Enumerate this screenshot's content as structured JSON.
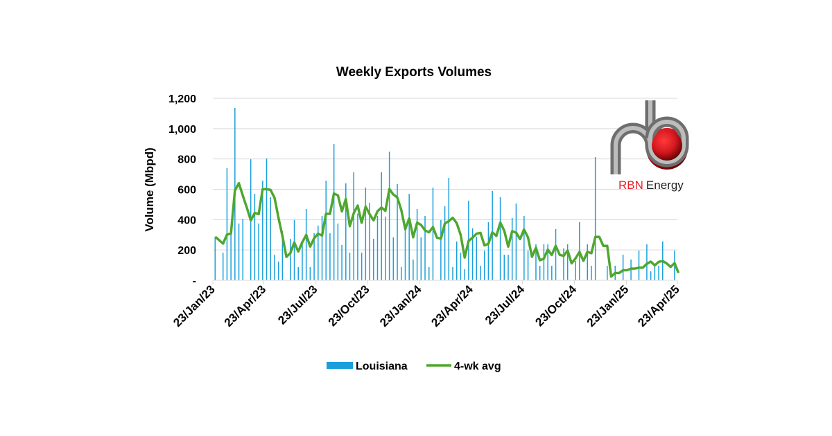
{
  "logo": {
    "text_red": "RBN",
    "text_dark": "Energy",
    "colors": {
      "red": "#e8202a",
      "pipe": "#7a7a7a"
    }
  },
  "chart_data": {
    "type": "bar",
    "title": "Weekly Exports Volumes",
    "xlabel": "",
    "ylabel": "Volume (Mbpd)",
    "ylim": [
      0,
      1200
    ],
    "yticks": [
      0,
      200,
      400,
      600,
      800,
      1000,
      1200
    ],
    "ytick_labels": [
      "-",
      "200",
      "400",
      "600",
      "800",
      "1,000",
      "1,200"
    ],
    "xlim": [
      "2023-01-23",
      "2025-04-23"
    ],
    "xticks": [
      "2023-01-23",
      "2023-04-23",
      "2023-07-23",
      "2023-10-23",
      "2024-01-23",
      "2024-04-23",
      "2024-07-23",
      "2024-10-23",
      "2025-01-23",
      "2025-04-23"
    ],
    "xtick_labels": [
      "23/Jan/23",
      "23/Apr/23",
      "23/Jul/23",
      "23/Oct/23",
      "23/Jan/24",
      "23/Apr/24",
      "23/Jul/24",
      "23/Oct/24",
      "23/Jan/25",
      "23/Apr/25"
    ],
    "grid": true,
    "legend_position": "bottom",
    "x": [
      "2023-01-27",
      "2023-02-03",
      "2023-02-10",
      "2023-02-17",
      "2023-02-24",
      "2023-03-03",
      "2023-03-10",
      "2023-03-17",
      "2023-03-24",
      "2023-03-31",
      "2023-04-07",
      "2023-04-14",
      "2023-04-21",
      "2023-04-28",
      "2023-05-05",
      "2023-05-12",
      "2023-05-19",
      "2023-05-26",
      "2023-06-02",
      "2023-06-09",
      "2023-06-16",
      "2023-06-23",
      "2023-06-30",
      "2023-07-07",
      "2023-07-14",
      "2023-07-21",
      "2023-07-28",
      "2023-08-04",
      "2023-08-11",
      "2023-08-18",
      "2023-08-25",
      "2023-09-01",
      "2023-09-08",
      "2023-09-15",
      "2023-09-22",
      "2023-09-29",
      "2023-10-06",
      "2023-10-13",
      "2023-10-20",
      "2023-10-27",
      "2023-11-03",
      "2023-11-10",
      "2023-11-17",
      "2023-11-24",
      "2023-12-01",
      "2023-12-08",
      "2023-12-15",
      "2023-12-22",
      "2023-12-29",
      "2024-01-05",
      "2024-01-12",
      "2024-01-19",
      "2024-01-26",
      "2024-02-02",
      "2024-02-09",
      "2024-02-16",
      "2024-02-23",
      "2024-03-01",
      "2024-03-08",
      "2024-03-15",
      "2024-03-22",
      "2024-03-29",
      "2024-04-05",
      "2024-04-12",
      "2024-04-19",
      "2024-04-26",
      "2024-05-03",
      "2024-05-10",
      "2024-05-17",
      "2024-05-24",
      "2024-05-31",
      "2024-06-07",
      "2024-06-14",
      "2024-06-21",
      "2024-06-28",
      "2024-07-05",
      "2024-07-12",
      "2024-07-19",
      "2024-07-26",
      "2024-08-02",
      "2024-08-09",
      "2024-08-16",
      "2024-08-23",
      "2024-08-30",
      "2024-09-06",
      "2024-09-13",
      "2024-09-20",
      "2024-09-27",
      "2024-10-04",
      "2024-10-11",
      "2024-10-18",
      "2024-10-25",
      "2024-11-01",
      "2024-11-08",
      "2024-11-15",
      "2024-11-22",
      "2024-11-29",
      "2024-12-06",
      "2024-12-13",
      "2024-12-20",
      "2024-12-27",
      "2025-01-03",
      "2025-01-10",
      "2025-01-17",
      "2025-01-24",
      "2025-01-31",
      "2025-02-07",
      "2025-02-14",
      "2025-02-21",
      "2025-02-28",
      "2025-03-07",
      "2025-03-14",
      "2025-03-21",
      "2025-03-28",
      "2025-04-04",
      "2025-04-11",
      "2025-04-18",
      "2025-04-25"
    ],
    "series": [
      {
        "name": "Louisiana",
        "type": "bar",
        "color": "#1a9fdb",
        "values": [
          284,
          0,
          182,
          739,
          310,
          1136,
          374,
          406,
          0,
          798,
          570,
          374,
          657,
          803,
          548,
          169,
          123,
          324,
          0,
          274,
          397,
          87,
          242,
          470,
          87,
          310,
          360,
          424,
          657,
          310,
          898,
          374,
          233,
          639,
          182,
          712,
          440,
          182,
          611,
          511,
          274,
          424,
          712,
          420,
          848,
          283,
          634,
          87,
          342,
          570,
          137,
          470,
          283,
          424,
          87,
          611,
          0,
          397,
          488,
          675,
          87,
          256,
          182,
          73,
          525,
          342,
          287,
          96,
          196,
          383,
          589,
          0,
          548,
          169,
          169,
          411,
          506,
          0,
          424,
          196,
          0,
          237,
          96,
          237,
          237,
          96,
          338,
          0,
          210,
          237,
          0,
          128,
          383,
          0,
          237,
          96,
          812,
          0,
          0,
          96,
          0,
          96,
          0,
          169,
          0,
          137,
          0,
          196,
          0,
          237,
          59,
          96,
          96,
          256,
          0,
          0,
          196,
          0
        ]
      },
      {
        "name": "4-wk avg",
        "type": "line",
        "color": "#4ea72e",
        "values": [
          287,
          265,
          242,
          301,
          308,
          592,
          640,
          557,
          479,
          395,
          444,
          436,
          600,
          601,
          596,
          544,
          411,
          291,
          154,
          180,
          249,
          190,
          250,
          299,
          222,
          277,
          307,
          295,
          438,
          438,
          572,
          560,
          454,
          536,
          357,
          442,
          493,
          379,
          486,
          436,
          395,
          455,
          480,
          458,
          601,
          566,
          546,
          463,
          337,
          408,
          284,
          380,
          365,
          329,
          316,
          351,
          281,
          274,
          374,
          390,
          412,
          377,
          300,
          150,
          259,
          281,
          307,
          313,
          230,
          241,
          316,
          292,
          380,
          327,
          222,
          324,
          314,
          272,
          335,
          282,
          155,
          214,
          132,
          143,
          202,
          167,
          227,
          168,
          161,
          196,
          112,
          144,
          187,
          128,
          187,
          179,
          286,
          286,
          227,
          227,
          24,
          48,
          48,
          66,
          66,
          77,
          77,
          83,
          83,
          108,
          123,
          98,
          122,
          127,
          112,
          88,
          113,
          49
        ]
      }
    ]
  }
}
